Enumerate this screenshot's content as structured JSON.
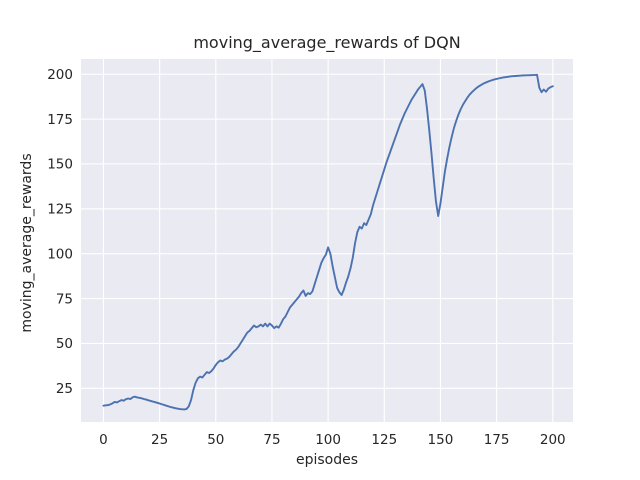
{
  "chart_data": {
    "type": "line",
    "title": "moving_average_rewards of DQN",
    "xlabel": "episodes",
    "ylabel": "moving_average_rewards",
    "xticks": [
      0,
      25,
      50,
      75,
      100,
      125,
      150,
      175,
      200
    ],
    "yticks": [
      25,
      50,
      75,
      100,
      125,
      150,
      175,
      200
    ],
    "xlim": [
      -10,
      209
    ],
    "ylim": [
      6.2,
      208.5
    ],
    "grid": true,
    "legend_position": "none",
    "style": "seaborn-darkgrid",
    "colors": {
      "line": "#4c72b0",
      "axes_background": "#eaeaf2",
      "gridline": "#ffffff",
      "text": "#262626",
      "figure_background": "#ffffff"
    },
    "series": [
      {
        "name": "moving_average_rewards",
        "points": [
          [
            0,
            15.3
          ],
          [
            1,
            15.5
          ],
          [
            2,
            15.6
          ],
          [
            3,
            16
          ],
          [
            4,
            16.6
          ],
          [
            5,
            17.4
          ],
          [
            6,
            17.1
          ],
          [
            7,
            17.8
          ],
          [
            8,
            18.4
          ],
          [
            9,
            18.1
          ],
          [
            10,
            18.9
          ],
          [
            11,
            19.3
          ],
          [
            12,
            19
          ],
          [
            13,
            20
          ],
          [
            14,
            20.3
          ],
          [
            15,
            19.9
          ],
          [
            16,
            19.7
          ],
          [
            17,
            19.4
          ],
          [
            18,
            19
          ],
          [
            19,
            18.7
          ],
          [
            20,
            18.3
          ],
          [
            22,
            17.6
          ],
          [
            24,
            16.9
          ],
          [
            26,
            16.1
          ],
          [
            28,
            15.3
          ],
          [
            30,
            14.5
          ],
          [
            32,
            13.9
          ],
          [
            34,
            13.4
          ],
          [
            36,
            13.2
          ],
          [
            37,
            13.5
          ],
          [
            38,
            15
          ],
          [
            39,
            18.5
          ],
          [
            40,
            24
          ],
          [
            41,
            28
          ],
          [
            42,
            30.5
          ],
          [
            43,
            31.5
          ],
          [
            44,
            31
          ],
          [
            45,
            32.5
          ],
          [
            46,
            34
          ],
          [
            47,
            33.5
          ],
          [
            48,
            34.5
          ],
          [
            49,
            36
          ],
          [
            50,
            38
          ],
          [
            51,
            39.5
          ],
          [
            52,
            40.5
          ],
          [
            53,
            40
          ],
          [
            54,
            41
          ],
          [
            55,
            41.5
          ],
          [
            56,
            42.5
          ],
          [
            57,
            44
          ],
          [
            58,
            45.5
          ],
          [
            59,
            46.5
          ],
          [
            60,
            48
          ],
          [
            61,
            50
          ],
          [
            62,
            52
          ],
          [
            63,
            54
          ],
          [
            64,
            56
          ],
          [
            65,
            57
          ],
          [
            66,
            58.5
          ],
          [
            67,
            60
          ],
          [
            68,
            59
          ],
          [
            69,
            59.5
          ],
          [
            70,
            60.5
          ],
          [
            71,
            59.5
          ],
          [
            72,
            61
          ],
          [
            73,
            59.5
          ],
          [
            74,
            61
          ],
          [
            75,
            60
          ],
          [
            76,
            58.5
          ],
          [
            77,
            59.5
          ],
          [
            78,
            58.8
          ],
          [
            79,
            61
          ],
          [
            80,
            63.5
          ],
          [
            81,
            65
          ],
          [
            82,
            67.5
          ],
          [
            83,
            70
          ],
          [
            84,
            71.5
          ],
          [
            85,
            73
          ],
          [
            86,
            74.5
          ],
          [
            87,
            76
          ],
          [
            88,
            78
          ],
          [
            89,
            79.5
          ],
          [
            90,
            76.5
          ],
          [
            91,
            78
          ],
          [
            92,
            77.5
          ],
          [
            93,
            79
          ],
          [
            94,
            83
          ],
          [
            95,
            87
          ],
          [
            96,
            91
          ],
          [
            97,
            95
          ],
          [
            98,
            97.5
          ],
          [
            99,
            99.5
          ],
          [
            100,
            103.5
          ],
          [
            101,
            100
          ],
          [
            102,
            93
          ],
          [
            103,
            87
          ],
          [
            104,
            81
          ],
          [
            105,
            78.5
          ],
          [
            106,
            77
          ],
          [
            107,
            80
          ],
          [
            108,
            84
          ],
          [
            109,
            87.5
          ],
          [
            110,
            92
          ],
          [
            111,
            98
          ],
          [
            112,
            106
          ],
          [
            113,
            112
          ],
          [
            114,
            115
          ],
          [
            115,
            114
          ],
          [
            116,
            117
          ],
          [
            117,
            116
          ],
          [
            118,
            119
          ],
          [
            119,
            122
          ],
          [
            120,
            127
          ],
          [
            121,
            131
          ],
          [
            122,
            135
          ],
          [
            123,
            139
          ],
          [
            124,
            143
          ],
          [
            125,
            147
          ],
          [
            126,
            151
          ],
          [
            127,
            154.5
          ],
          [
            128,
            158
          ],
          [
            129,
            161.5
          ],
          [
            130,
            165
          ],
          [
            131,
            168.5
          ],
          [
            132,
            172
          ],
          [
            133,
            175
          ],
          [
            134,
            178
          ],
          [
            135,
            180.5
          ],
          [
            136,
            183
          ],
          [
            137,
            185.5
          ],
          [
            138,
            187.5
          ],
          [
            139,
            189.5
          ],
          [
            140,
            191.5
          ],
          [
            141,
            193
          ],
          [
            142,
            194.5
          ],
          [
            143,
            191
          ],
          [
            144,
            181
          ],
          [
            145,
            169
          ],
          [
            146,
            156
          ],
          [
            147,
            142
          ],
          [
            148,
            129
          ],
          [
            149,
            121
          ],
          [
            150,
            128
          ],
          [
            151,
            137
          ],
          [
            152,
            146
          ],
          [
            153,
            153
          ],
          [
            154,
            159.5
          ],
          [
            155,
            165
          ],
          [
            156,
            170
          ],
          [
            157,
            174
          ],
          [
            158,
            177.5
          ],
          [
            159,
            180.5
          ],
          [
            160,
            183
          ],
          [
            161,
            185
          ],
          [
            162,
            187
          ],
          [
            163,
            188.7
          ],
          [
            164,
            190
          ],
          [
            165,
            191.2
          ],
          [
            166,
            192.3
          ],
          [
            167,
            193.2
          ],
          [
            168,
            194
          ],
          [
            169,
            194.7
          ],
          [
            170,
            195.3
          ],
          [
            172,
            196.3
          ],
          [
            174,
            197.1
          ],
          [
            176,
            197.7
          ],
          [
            178,
            198.2
          ],
          [
            180,
            198.6
          ],
          [
            182,
            198.9
          ],
          [
            184,
            199.1
          ],
          [
            186,
            199.3
          ],
          [
            188,
            199.4
          ],
          [
            190,
            199.5
          ],
          [
            192,
            199.6
          ],
          [
            193,
            199.7
          ],
          [
            194,
            192.5
          ],
          [
            195,
            190
          ],
          [
            196,
            191.5
          ],
          [
            197,
            190.3
          ],
          [
            198,
            192
          ],
          [
            199,
            192.8
          ],
          [
            200,
            193.3
          ]
        ]
      }
    ]
  }
}
